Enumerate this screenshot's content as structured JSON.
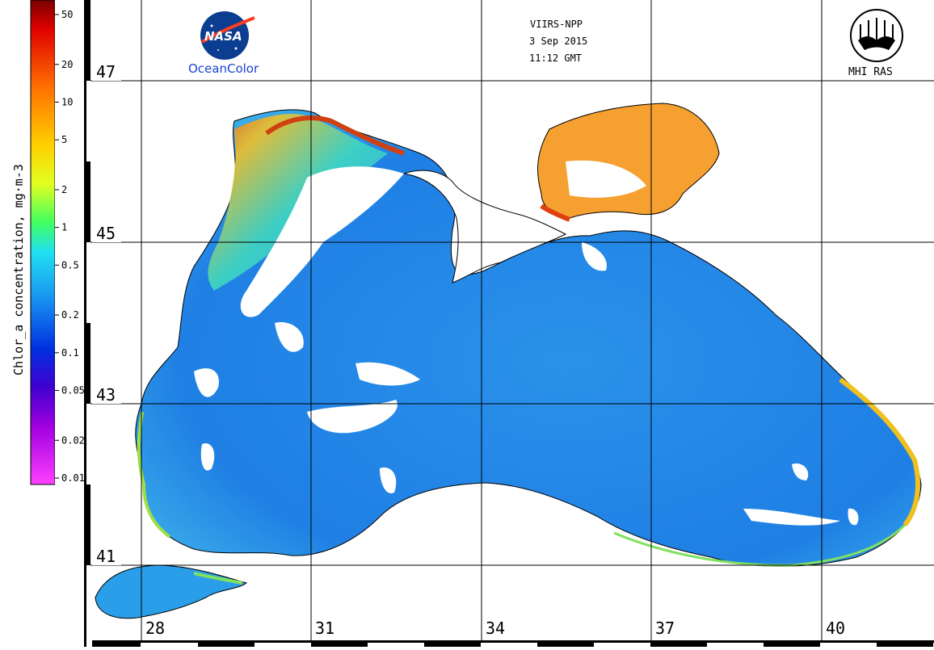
{
  "header": {
    "sensor": "VIIRS-NPP",
    "date": "3 Sep 2015",
    "time": "11:12 GMT"
  },
  "logos": {
    "nasa_text": "NASA",
    "oceancolor_text": "OceanColor",
    "mhi_text": "MHI RAS"
  },
  "colorbar": {
    "title": "Chlor_a concentration, mg·m-3",
    "ticks": [
      "50",
      "20",
      "10",
      "5",
      "2",
      "1",
      "0.5",
      "0.2",
      "0.1",
      "0.05",
      "0.02",
      "0.01"
    ],
    "scale": "log",
    "range": [
      0.01,
      50
    ]
  },
  "grid": {
    "latitudes": [
      "47",
      "45",
      "43",
      "41"
    ],
    "longitudes": [
      "28",
      "31",
      "34",
      "37",
      "40"
    ]
  },
  "colors": {
    "sea_low": "#1e7fe6",
    "sea_mid": "#29b8ee",
    "coastal_high": "#f0c020",
    "azov_high": "#f5a030",
    "land": "#ffffff",
    "grid_line": "#000000"
  }
}
